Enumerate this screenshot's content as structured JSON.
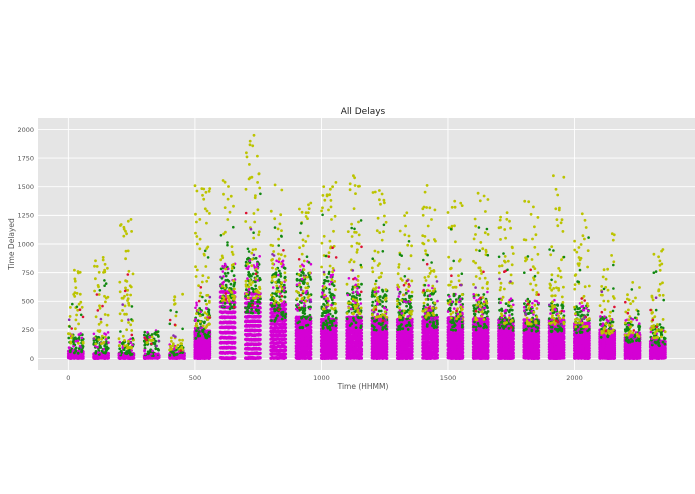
{
  "chart_data": {
    "type": "scatter",
    "title": "All Delays",
    "xlabel": "Time (HHMM)",
    "ylabel": "Time Delayed",
    "xlim": [
      -120,
      2480
    ],
    "ylim": [
      -100,
      2100
    ],
    "xticks": [
      0,
      500,
      1000,
      1500,
      2000
    ],
    "yticks": [
      0,
      250,
      500,
      750,
      1000,
      1250,
      1500,
      1750,
      2000
    ],
    "grid": true,
    "legend": "none",
    "background": "#e5e5e5",
    "colors": {
      "magenta": "#d400d4",
      "green": "#118811",
      "yellow": "#bcc400",
      "red": "#dd1133",
      "purple": "#8a2bb0"
    },
    "hour_columns": [
      {
        "hour_start": 0,
        "magenta_top": 60,
        "green_top": 220,
        "yellow_max": 780
      },
      {
        "hour_start": 100,
        "magenta_top": 50,
        "green_top": 200,
        "yellow_max": 910
      },
      {
        "hour_start": 200,
        "magenta_top": 40,
        "green_top": 150,
        "yellow_max": 1290
      },
      {
        "hour_start": 300,
        "magenta_top": 30,
        "green_top": 230,
        "yellow_max": 240
      },
      {
        "hour_start": 400,
        "magenta_top": 40,
        "green_top": 110,
        "yellow_max": 580
      },
      {
        "hour_start": 500,
        "magenta_top": 250,
        "green_top": 450,
        "yellow_max": 1560
      },
      {
        "hour_start": 600,
        "magenta_top": 620,
        "green_top": 820,
        "yellow_max": 1600
      },
      {
        "hour_start": 700,
        "magenta_top": 560,
        "green_top": 880,
        "yellow_max": 1970
      },
      {
        "hour_start": 800,
        "magenta_top": 460,
        "green_top": 800,
        "yellow_max": 1550
      },
      {
        "hour_start": 900,
        "magenta_top": 380,
        "green_top": 780,
        "yellow_max": 1400
      },
      {
        "hour_start": 1000,
        "magenta_top": 360,
        "green_top": 720,
        "yellow_max": 1630
      },
      {
        "hour_start": 1100,
        "magenta_top": 380,
        "green_top": 650,
        "yellow_max": 1620
      },
      {
        "hour_start": 1200,
        "magenta_top": 350,
        "green_top": 600,
        "yellow_max": 1500
      },
      {
        "hour_start": 1300,
        "magenta_top": 360,
        "green_top": 590,
        "yellow_max": 1310
      },
      {
        "hour_start": 1400,
        "magenta_top": 380,
        "green_top": 600,
        "yellow_max": 1530
      },
      {
        "hour_start": 1500,
        "magenta_top": 350,
        "green_top": 560,
        "yellow_max": 1400
      },
      {
        "hour_start": 1600,
        "magenta_top": 340,
        "green_top": 560,
        "yellow_max": 1470
      },
      {
        "hour_start": 1700,
        "magenta_top": 330,
        "green_top": 510,
        "yellow_max": 1280
      },
      {
        "hour_start": 1800,
        "magenta_top": 330,
        "green_top": 500,
        "yellow_max": 1380
      },
      {
        "hour_start": 1900,
        "magenta_top": 330,
        "green_top": 500,
        "yellow_max": 1630
      },
      {
        "hour_start": 2000,
        "magenta_top": 300,
        "green_top": 460,
        "yellow_max": 1330
      },
      {
        "hour_start": 2100,
        "magenta_top": 260,
        "green_top": 360,
        "yellow_max": 1100
      },
      {
        "hour_start": 2200,
        "magenta_top": 200,
        "green_top": 320,
        "yellow_max": 750
      },
      {
        "hour_start": 2300,
        "magenta_top": 160,
        "green_top": 300,
        "yellow_max": 1030
      }
    ]
  }
}
